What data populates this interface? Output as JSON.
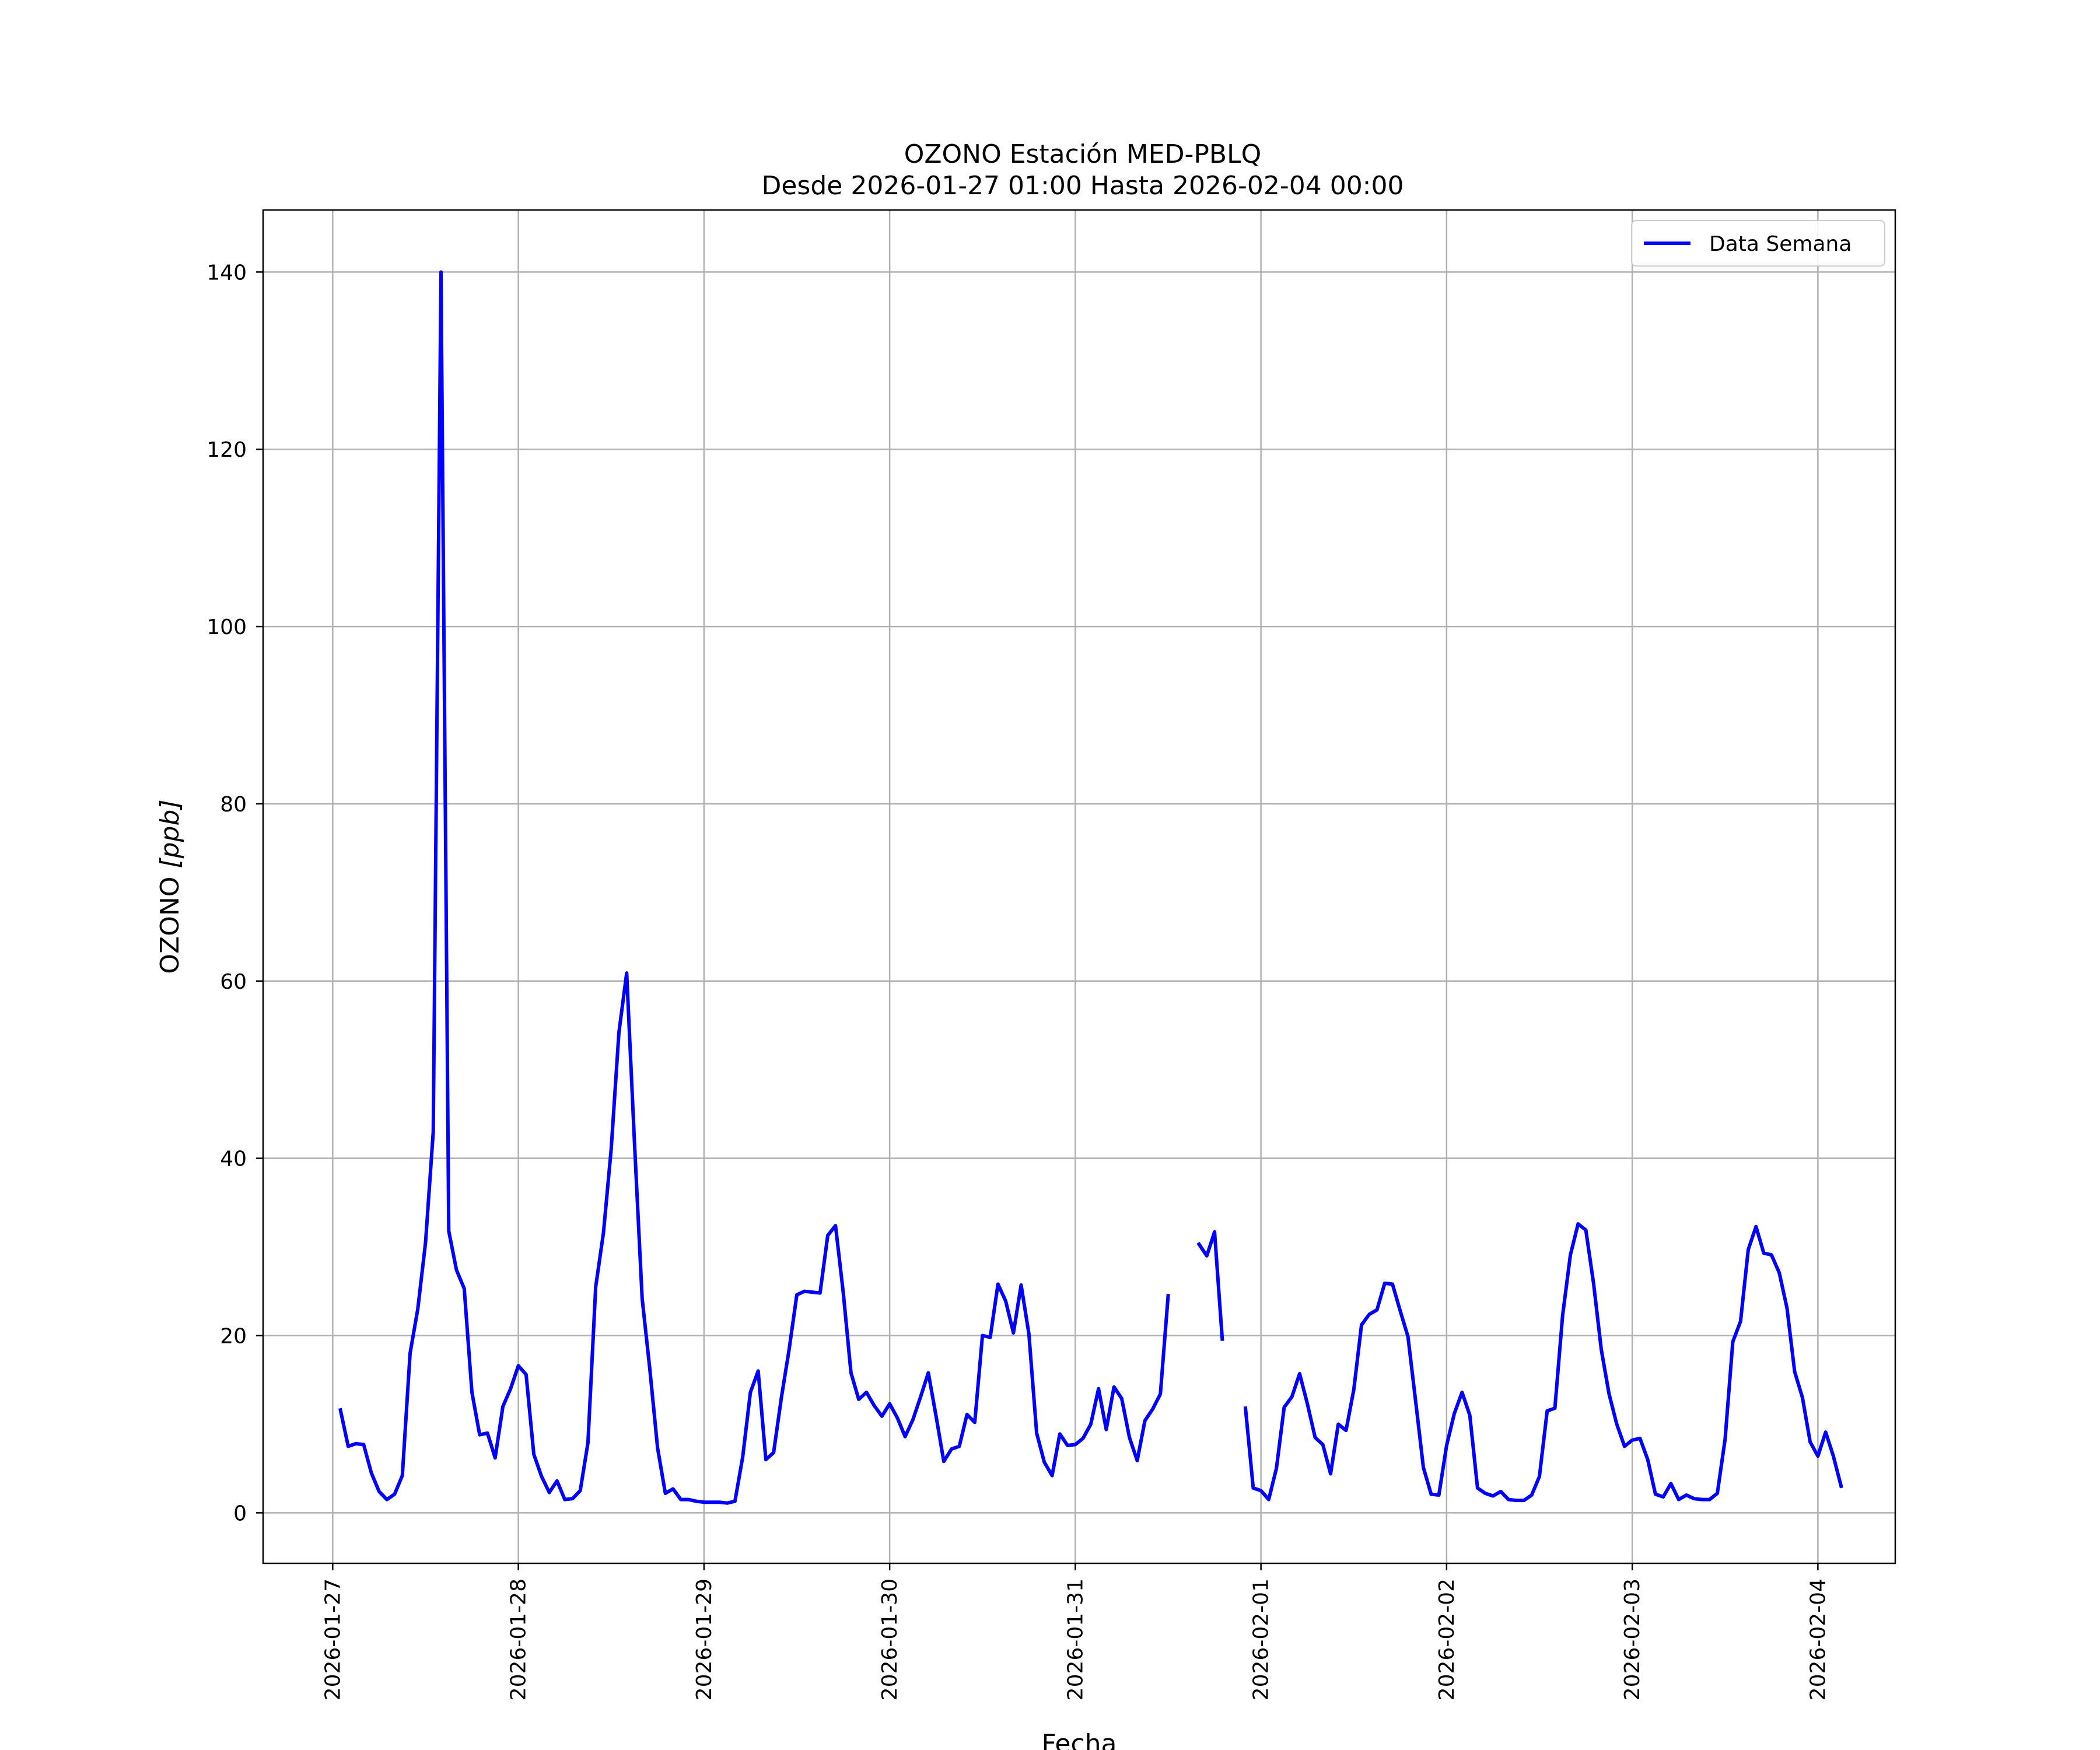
{
  "chart_data": {
    "type": "line",
    "title": "OZONO Estación MED-PBLQ",
    "subtitle": "Desde 2026-01-27 01:00 Hasta 2026-02-04 00:00",
    "xlabel": "Fecha",
    "ylabel_main": "OZONO ",
    "ylabel_unit": "[ppb]",
    "x_ticks": [
      "2026-01-27",
      "2026-01-28",
      "2026-01-29",
      "2026-01-30",
      "2026-01-31",
      "2026-02-01",
      "2026-02-02",
      "2026-02-03",
      "2026-02-04"
    ],
    "xlim": [
      "2026-01-26T15:00",
      "2026-02-04T10:00"
    ],
    "y_ticks": [
      0,
      20,
      40,
      60,
      80,
      100,
      120,
      140
    ],
    "ylim": [
      -5.7,
      147
    ],
    "grid": true,
    "legend_position": "top-right",
    "series": [
      {
        "name": "Data Semana",
        "color": "#0000ff",
        "x_start": "2026-01-27T01:00",
        "x_step": "1 hour",
        "values": [
          11.6,
          7.5,
          7.8,
          7.7,
          4.5,
          2.4,
          1.5,
          2.1,
          4.2,
          18,
          23,
          30.5,
          43,
          140,
          31.8,
          27.4,
          25.3,
          13.6,
          8.8,
          9,
          6.2,
          12,
          14,
          16.6,
          15.6,
          6.6,
          4.1,
          2.3,
          3.6,
          1.5,
          1.6,
          2.5,
          7.9,
          25.5,
          31.6,
          41,
          54.2,
          60.9,
          42,
          24.2,
          16.2,
          7.3,
          2.2,
          2.7,
          1.5,
          1.5,
          1.3,
          1.2,
          1.2,
          1.2,
          1.1,
          1.3,
          6.3,
          13.6,
          16,
          6,
          6.8,
          13,
          18.4,
          24.6,
          25,
          24.9,
          24.8,
          31.3,
          32.4,
          24.9,
          15.8,
          12.8,
          13.6,
          12.1,
          10.9,
          12.3,
          10.7,
          8.6,
          10.5,
          13.1,
          15.8,
          10.9,
          5.8,
          7.2,
          7.5,
          11.1,
          10.2,
          20,
          19.8,
          25.8,
          23.9,
          20.3,
          25.7,
          20.2,
          9,
          5.7,
          4.2,
          8.9,
          7.6,
          7.7,
          8.4,
          10,
          14,
          9.4,
          14.2,
          12.9,
          8.5,
          5.9,
          10.4,
          11.7,
          13.4,
          24.5,
          null,
          null,
          null,
          30.3,
          29,
          31.7,
          19.6,
          null,
          null,
          11.8,
          2.8,
          2.5,
          1.5,
          5,
          11.9,
          13.1,
          15.7,
          12.3,
          8.5,
          7.7,
          4.4,
          10,
          9.3,
          13.9,
          21.2,
          22.4,
          22.9,
          25.9,
          25.8,
          22.8,
          19.9,
          12.6,
          5.1,
          2.1,
          2,
          7.6,
          11.2,
          13.6,
          11,
          2.8,
          2.2,
          1.9,
          2.4,
          1.5,
          1.4,
          1.4,
          2,
          4.1,
          11.5,
          11.8,
          22.3,
          29.1,
          32.6,
          31.9,
          25.9,
          18.4,
          13.4,
          10,
          7.5,
          8.2,
          8.4,
          6,
          2.1,
          1.8,
          3.3,
          1.5,
          2,
          1.6,
          1.5,
          1.5,
          2.2,
          8.3,
          19.3,
          21.6,
          29.7,
          32.3,
          29.3,
          29.1,
          27.1,
          23.1,
          15.9,
          13,
          8,
          6.4,
          9.1,
          6.4,
          3
        ]
      }
    ]
  }
}
